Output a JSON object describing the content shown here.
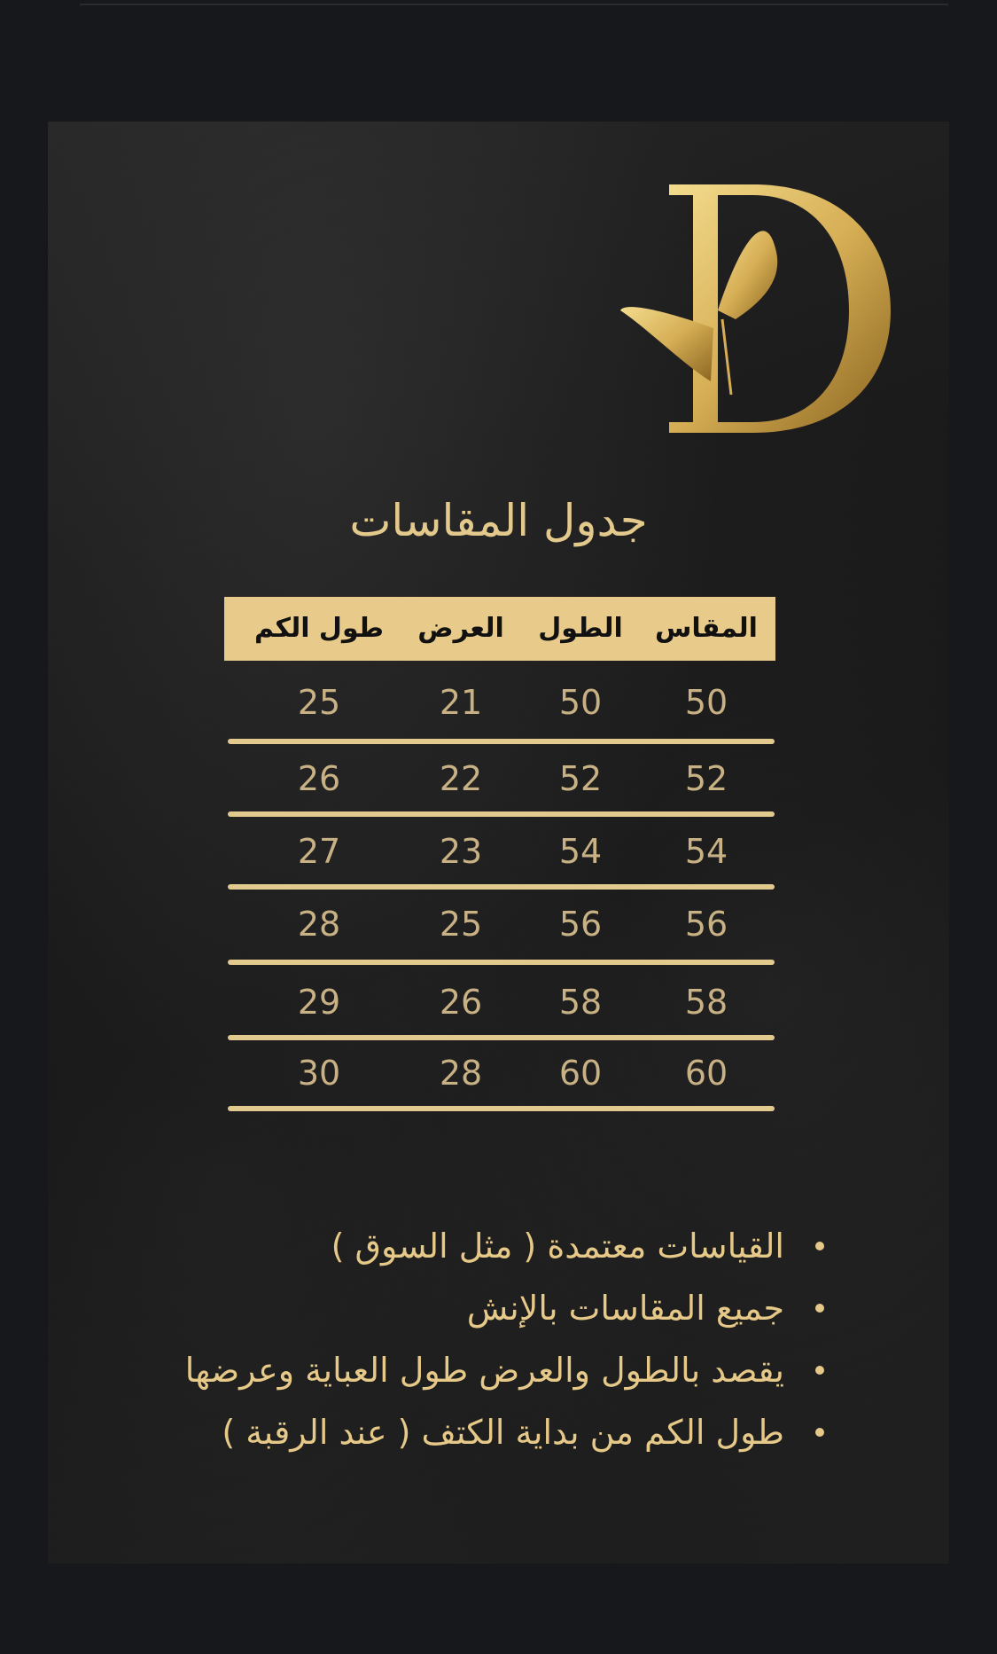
{
  "brand": {
    "logo_letter": "D",
    "colors": {
      "gold": "#e8cb8a",
      "background": "#17181b",
      "text_gold": "#c8b184"
    }
  },
  "title": "جدول المقاسات",
  "table": {
    "headers": [
      "المقاس",
      "الطول",
      "العرض",
      "طول الكم"
    ],
    "rows": [
      [
        "50",
        "50",
        "21",
        "25"
      ],
      [
        "52",
        "52",
        "22",
        "26"
      ],
      [
        "54",
        "54",
        "23",
        "27"
      ],
      [
        "56",
        "56",
        "25",
        "28"
      ],
      [
        "58",
        "58",
        "26",
        "29"
      ],
      [
        "60",
        "60",
        "28",
        "30"
      ]
    ]
  },
  "notes": [
    "القياسات معتمدة ( مثل السوق )",
    "جميع المقاسات بالإنش",
    "يقصد بالطول والعرض طول العباية وعرضها",
    "طول الكم من بداية الكتف ( عند الرقبة )"
  ]
}
